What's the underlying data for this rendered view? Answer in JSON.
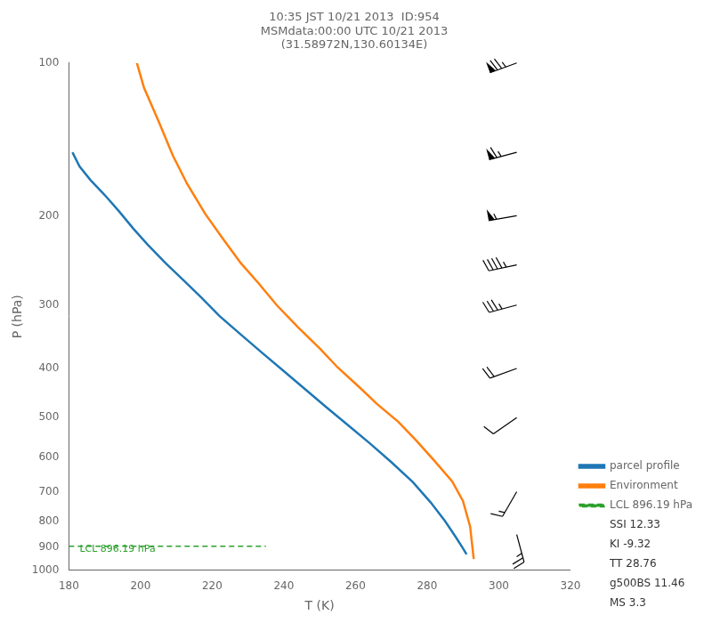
{
  "chart_data": {
    "type": "line",
    "title": "10:35 JST 10/21 2013  ID:954\nMSMdata:00:00 UTC 10/21 2013\n(31.58972N,130.60134E)",
    "x_label": "T (K)",
    "y_label": "P (hPa)",
    "log": "y",
    "xlim": [
      180,
      320
    ],
    "xticks": [
      180,
      200,
      220,
      240,
      260,
      280,
      300,
      320
    ],
    "ylim": [
      1000,
      100
    ],
    "yticks": [
      100,
      200,
      300,
      400,
      500,
      600,
      700,
      800,
      900,
      1000
    ],
    "grid": false,
    "legend": "lower right",
    "series": [
      {
        "name": "parcel profile",
        "color": "#1f77b4",
        "line_style": "solid",
        "x": [
          181,
          183,
          186,
          190,
          194,
          198,
          202,
          207,
          212,
          217,
          222,
          228,
          234,
          240,
          246,
          252,
          258,
          264,
          270,
          276,
          281,
          285,
          288,
          290,
          291
        ],
        "values": [
          150,
          160,
          170,
          182,
          196,
          212,
          228,
          248,
          268,
          290,
          315,
          343,
          373,
          405,
          440,
          478,
          518,
          562,
          612,
          670,
          735,
          800,
          860,
          905,
          930
        ]
      },
      {
        "name": "Environment",
        "color": "#ff7f0e",
        "line_style": "solid",
        "x": [
          199,
          201,
          205,
          209,
          213,
          218,
          223,
          228,
          233,
          238,
          244,
          250,
          255,
          261,
          266,
          272,
          277,
          282,
          287,
          290,
          292,
          293
        ],
        "values": [
          100,
          112,
          130,
          152,
          173,
          198,
          222,
          248,
          272,
          300,
          332,
          365,
          398,
          435,
          470,
          510,
          555,
          608,
          668,
          730,
          820,
          950
        ]
      },
      {
        "name": "LCL 896.19 hPa",
        "color": "#2ca02c",
        "line_style": "dashed",
        "x": [
          180,
          235
        ],
        "values": [
          896.19,
          896.19
        ]
      }
    ],
    "annotations": [
      {
        "text": "LCL 896.19 hPa",
        "x": 183,
        "y": 878.2662,
        "color": "#2ca02c"
      }
    ],
    "stats": [
      "SSI 12.33",
      "KI -9.32",
      "TT 28.76",
      "g500BS 11.46",
      "MS 3.3"
    ],
    "wind_barbs": {
      "x": 305,
      "color": "#000000",
      "pressure": [
        100,
        150,
        200,
        250,
        300,
        400,
        500,
        700,
        850
      ],
      "speed": [
        75,
        65,
        55,
        45,
        35,
        20,
        10,
        15,
        25
      ],
      "direction": [
        250,
        255,
        260,
        258,
        255,
        250,
        235,
        210,
        165
      ]
    }
  }
}
